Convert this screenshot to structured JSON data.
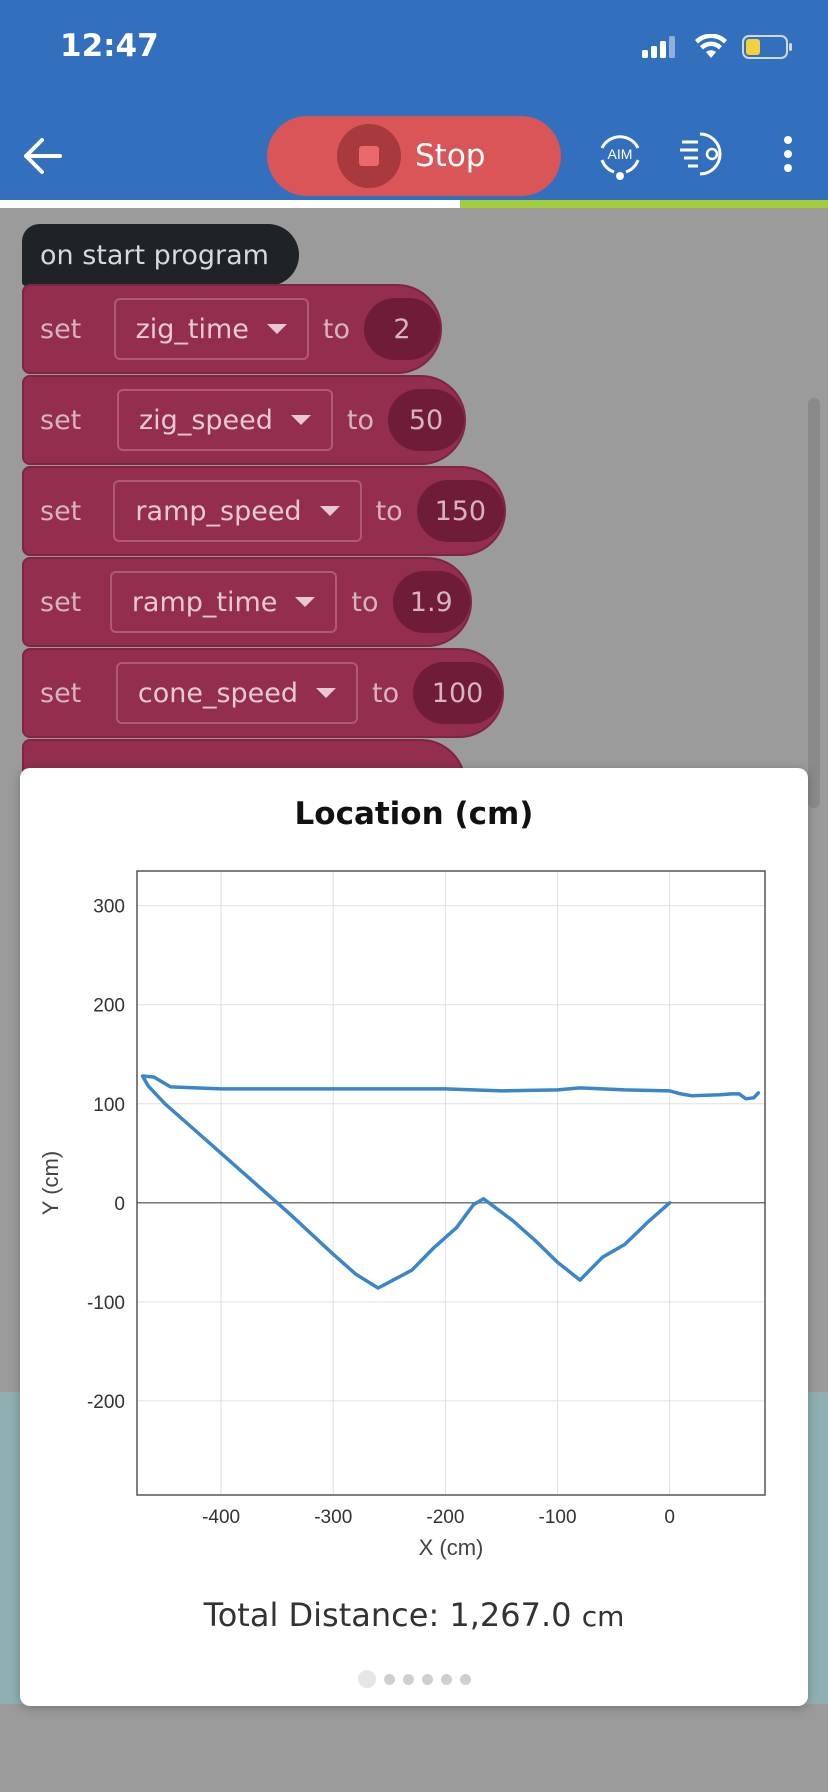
{
  "status_bar": {
    "time": "12:47"
  },
  "toolbar": {
    "stop_label": "Stop",
    "aim_label": "AIM"
  },
  "program": {
    "hat_label": "on start program",
    "blocks": [
      {
        "set": "set",
        "variable": "zig_time",
        "to": "to",
        "value": "2"
      },
      {
        "set": "set",
        "variable": "zig_speed",
        "to": "to",
        "value": "50"
      },
      {
        "set": "set",
        "variable": "ramp_speed",
        "to": "to",
        "value": "150"
      },
      {
        "set": "set",
        "variable": "ramp_time",
        "to": "to",
        "value": "1.9"
      },
      {
        "set": "set",
        "variable": "cone_speed",
        "to": "to",
        "value": "100"
      }
    ]
  },
  "modal": {
    "title": "Location (cm)",
    "total_label": "Total Distance: 1,267.0",
    "total_unit": "cm",
    "page_count": 6,
    "active_page": 0
  },
  "chart_data": {
    "type": "line",
    "title": "Location (cm)",
    "xlabel": "X (cm)",
    "ylabel": "Y (cm)",
    "xlim": [
      -475,
      85
    ],
    "ylim": [
      -295,
      335
    ],
    "xticks": [
      -400,
      -300,
      -200,
      -100,
      0
    ],
    "yticks": [
      300,
      200,
      100,
      0,
      -100,
      -200
    ],
    "grid": true,
    "color": "#3a86c8",
    "series": [
      {
        "x": [
          0,
          -20,
          -40,
          -60,
          -80,
          -100,
          -120,
          -140,
          -166,
          -175,
          -190,
          -210,
          -230,
          -260,
          -280,
          -300,
          -340,
          -380,
          -420,
          -450,
          -465,
          -470,
          -460,
          -445,
          -400,
          -300,
          -200,
          -150,
          -100,
          -80,
          -40,
          0,
          10,
          20,
          45,
          55,
          62,
          68,
          75,
          79
        ],
        "y": [
          0,
          -20,
          -42,
          -55,
          -78,
          -60,
          -38,
          -18,
          4,
          -2,
          -25,
          -45,
          -68,
          -86,
          -72,
          -52,
          -10,
          30,
          70,
          100,
          118,
          128,
          127,
          117,
          115,
          115,
          115,
          113,
          114,
          116,
          114,
          113,
          110,
          108,
          109,
          110,
          110,
          105,
          106,
          111
        ]
      }
    ]
  }
}
